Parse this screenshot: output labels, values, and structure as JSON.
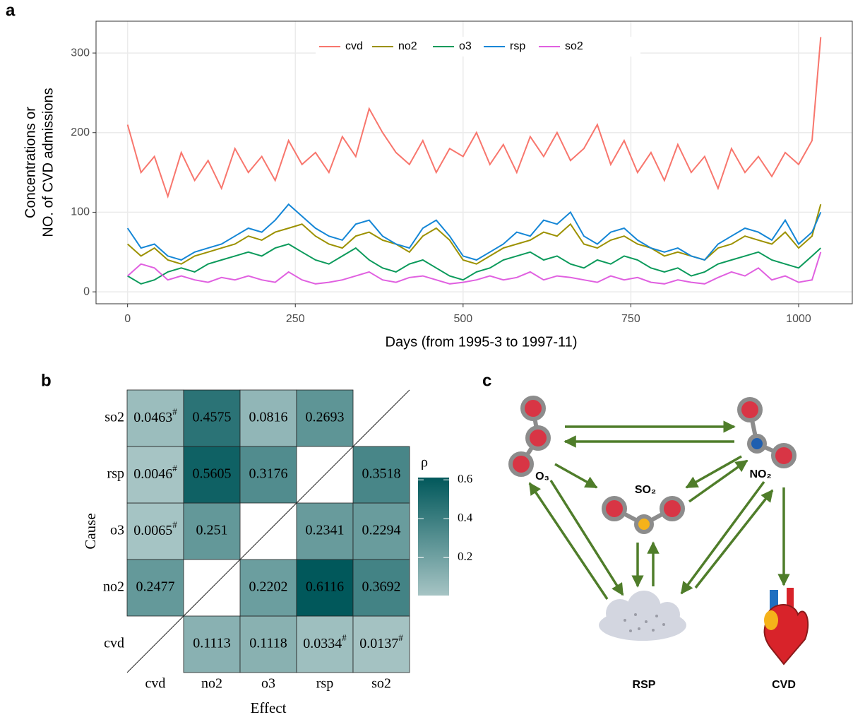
{
  "chart_data": [
    {
      "type": "line",
      "panel_label": "a",
      "ylabel": [
        "Concentrations or",
        "NO. of CVD admissions"
      ],
      "xlabel": "Days (from 1995-3 to 1997-11)",
      "x": [
        0,
        20,
        40,
        60,
        80,
        100,
        120,
        140,
        160,
        180,
        200,
        220,
        240,
        260,
        280,
        300,
        320,
        340,
        360,
        380,
        400,
        420,
        440,
        460,
        480,
        500,
        520,
        540,
        560,
        580,
        600,
        620,
        640,
        660,
        680,
        700,
        720,
        740,
        760,
        780,
        800,
        820,
        840,
        860,
        880,
        900,
        920,
        940,
        960,
        980,
        1000,
        1020,
        1033
      ],
      "series": [
        {
          "name": "cvd",
          "color": "#f8766d",
          "values": [
            210,
            150,
            170,
            120,
            175,
            140,
            165,
            130,
            180,
            150,
            170,
            140,
            190,
            160,
            175,
            150,
            195,
            170,
            230,
            200,
            175,
            160,
            190,
            150,
            180,
            170,
            200,
            160,
            185,
            150,
            195,
            170,
            200,
            165,
            180,
            210,
            160,
            190,
            150,
            175,
            140,
            185,
            150,
            170,
            130,
            180,
            150,
            170,
            145,
            175,
            160,
            190,
            320
          ]
        },
        {
          "name": "no2",
          "color": "#9c9100",
          "values": [
            60,
            45,
            55,
            40,
            35,
            45,
            50,
            55,
            60,
            70,
            65,
            75,
            80,
            85,
            70,
            60,
            55,
            70,
            75,
            65,
            60,
            50,
            70,
            80,
            65,
            40,
            35,
            45,
            55,
            60,
            65,
            75,
            70,
            85,
            60,
            55,
            65,
            70,
            60,
            55,
            45,
            50,
            45,
            40,
            55,
            60,
            70,
            65,
            60,
            75,
            55,
            70,
            110
          ]
        },
        {
          "name": "o3",
          "color": "#0b9a5b",
          "values": [
            20,
            10,
            15,
            25,
            30,
            25,
            35,
            40,
            45,
            50,
            45,
            55,
            60,
            50,
            40,
            35,
            45,
            55,
            40,
            30,
            25,
            35,
            40,
            30,
            20,
            15,
            25,
            30,
            40,
            45,
            50,
            40,
            45,
            35,
            30,
            40,
            35,
            45,
            40,
            30,
            25,
            30,
            20,
            25,
            35,
            40,
            45,
            50,
            40,
            35,
            30,
            45,
            55
          ]
        },
        {
          "name": "rsp",
          "color": "#1486d6",
          "values": [
            80,
            55,
            60,
            45,
            40,
            50,
            55,
            60,
            70,
            80,
            75,
            90,
            110,
            95,
            80,
            70,
            65,
            85,
            90,
            70,
            60,
            55,
            80,
            90,
            70,
            45,
            40,
            50,
            60,
            75,
            70,
            90,
            85,
            100,
            70,
            60,
            75,
            80,
            65,
            55,
            50,
            55,
            45,
            40,
            60,
            70,
            80,
            75,
            65,
            90,
            60,
            75,
            100
          ]
        },
        {
          "name": "so2",
          "color": "#e060e0",
          "values": [
            20,
            35,
            30,
            15,
            20,
            15,
            12,
            18,
            15,
            20,
            15,
            12,
            25,
            15,
            10,
            12,
            15,
            20,
            25,
            15,
            12,
            18,
            20,
            15,
            10,
            12,
            15,
            20,
            15,
            18,
            25,
            15,
            20,
            18,
            15,
            12,
            20,
            15,
            18,
            12,
            10,
            15,
            12,
            10,
            18,
            25,
            20,
            30,
            15,
            20,
            12,
            15,
            50
          ]
        }
      ],
      "xlim": [
        -47,
        1080
      ],
      "ylim": [
        -15,
        340
      ],
      "xticks": [
        0,
        250,
        500,
        750,
        1000
      ],
      "yticks": [
        0,
        100,
        200,
        300
      ],
      "grid": true,
      "legend": "top"
    },
    {
      "type": "heatmap",
      "panel_label": "b",
      "xlabel": "Effect",
      "ylabel": "Cause",
      "x_categories": [
        "cvd",
        "no2",
        "o3",
        "rsp",
        "so2"
      ],
      "y_categories": [
        "cvd",
        "no2",
        "o3",
        "rsp",
        "so2"
      ],
      "values": [
        [
          null,
          0.1113,
          0.1118,
          0.0334,
          0.0137
        ],
        [
          0.2477,
          null,
          0.2202,
          0.6116,
          0.3692
        ],
        [
          0.0065,
          0.251,
          null,
          0.2341,
          0.2294
        ],
        [
          0.0046,
          0.5605,
          0.3176,
          null,
          0.3518
        ],
        [
          0.0463,
          0.4575,
          0.0816,
          0.2693,
          null
        ]
      ],
      "value_labels": [
        [
          null,
          "0.1113",
          "0.1118",
          "0.0334#",
          "0.0137#"
        ],
        [
          "0.2477",
          null,
          "0.2202",
          "0.6116",
          "0.3692"
        ],
        [
          "0.0065#",
          "0.251",
          null,
          "0.2341",
          "0.2294"
        ],
        [
          "0.0046#",
          "0.5605",
          "0.3176",
          null,
          "0.3518"
        ],
        [
          "0.0463#",
          "0.4575",
          "0.0816",
          "0.2693",
          null
        ]
      ],
      "legend_title": "ρ",
      "zlim": [
        0.0046,
        0.6116
      ],
      "zticks": [
        0.2,
        0.4,
        0.6
      ],
      "colors": [
        "#a6c4c4",
        "#01585b"
      ]
    }
  ],
  "diagram": {
    "panel_label": "c",
    "labels": [
      "O₃",
      "SO₂",
      "NO₂",
      "RSP",
      "CVD"
    ]
  }
}
